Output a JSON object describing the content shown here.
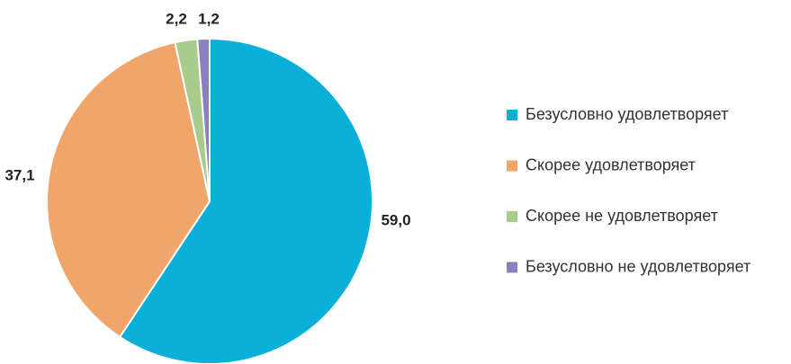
{
  "chart_data": {
    "type": "pie",
    "categories": [
      "Безусловно удовлетворяет",
      "Скорее удовлетворяет",
      "Скорее не удовлетворяет",
      "Безусловно не удовлетворяет"
    ],
    "values": [
      59.0,
      37.1,
      2.2,
      1.2
    ],
    "value_labels": [
      "59,0",
      "37,1",
      "2,2",
      "1,2"
    ],
    "colors": [
      "#0ab0d8",
      "#f0a66a",
      "#a8cc8c",
      "#8c7fbd"
    ]
  }
}
